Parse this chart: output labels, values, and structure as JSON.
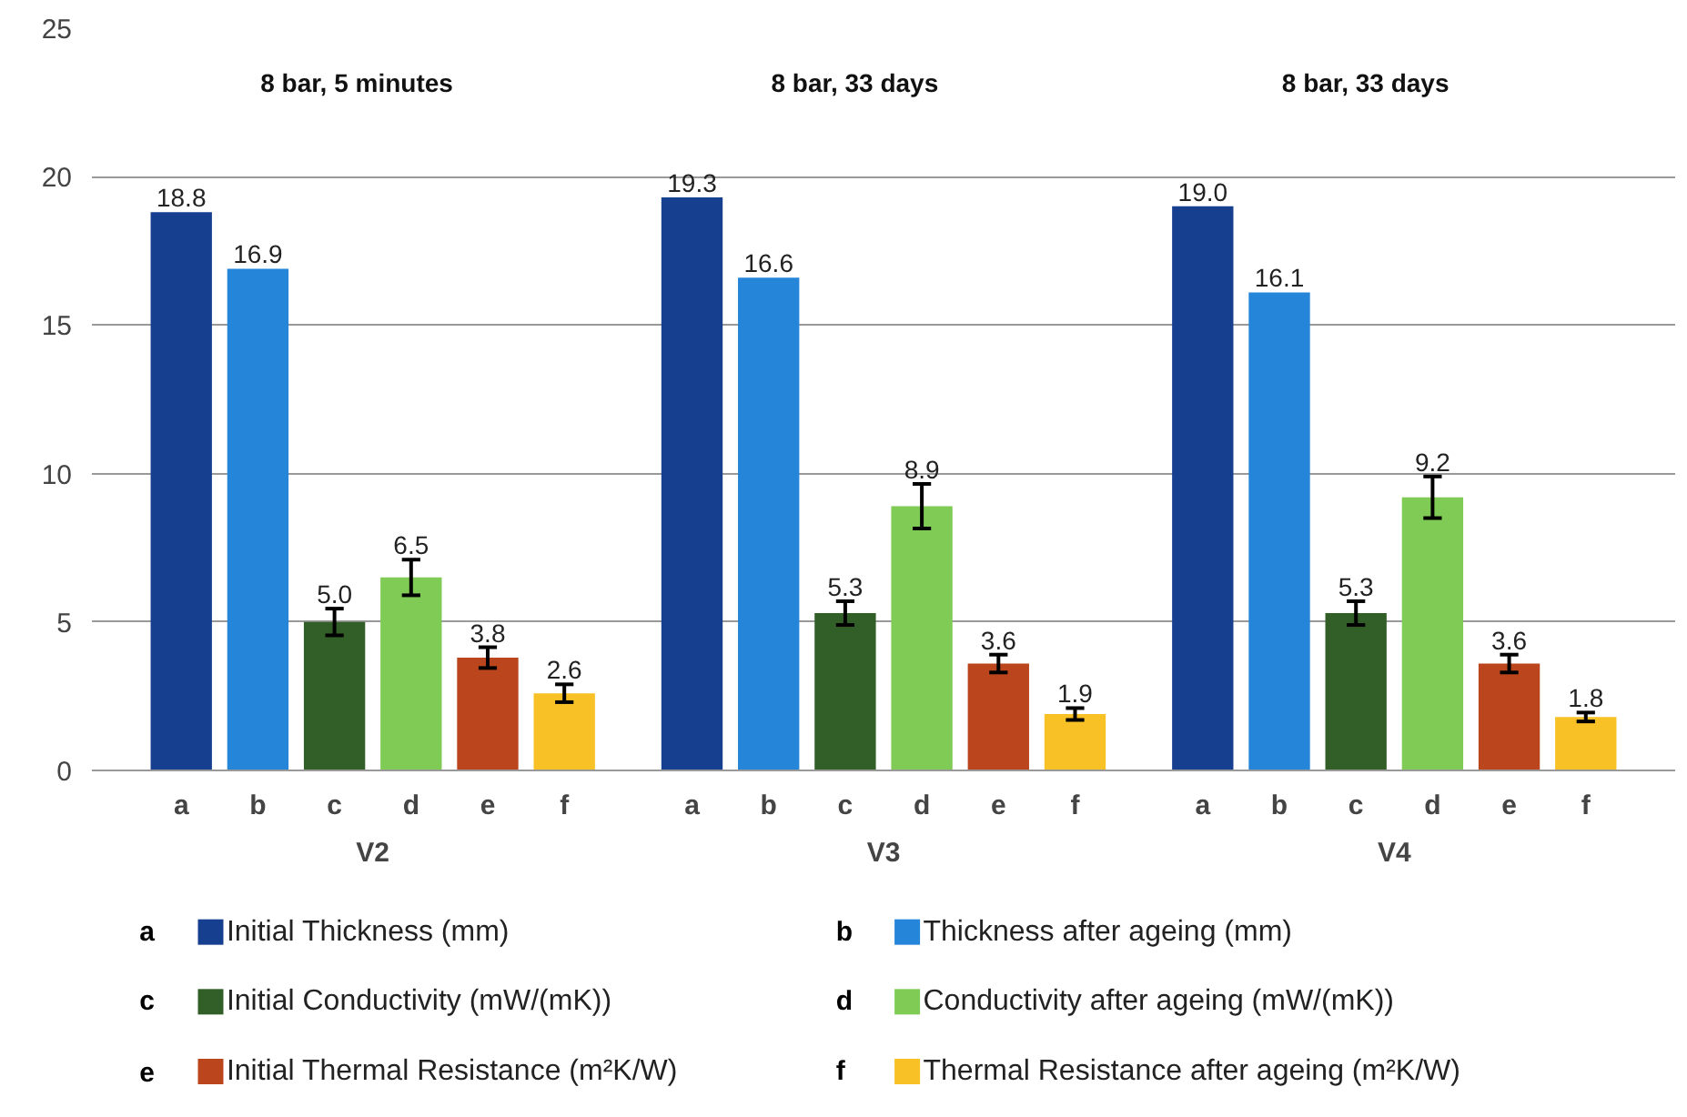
{
  "chart_data": {
    "type": "bar",
    "categories": [
      "V2",
      "V3",
      "V4"
    ],
    "series": [
      {
        "name": "Initial Thickness (mm)",
        "color": "#173f8f",
        "values": [
          18.8,
          19.3,
          19.0
        ],
        "value_labels": [
          "18.8",
          "19.3",
          "19.0"
        ]
      },
      {
        "name": "Thickness after ageing (mm)",
        "color": "#2585d8",
        "values": [
          16.9,
          16.6,
          16.1
        ],
        "value_labels": [
          "16.9",
          "16.6",
          "16.1"
        ]
      },
      {
        "name": "Initial Conductivity (mW/(mK))",
        "color": "#325e27",
        "values": [
          5.0,
          5.3,
          5.3
        ],
        "errors": [
          0.45,
          0.4,
          0.4
        ],
        "value_labels": [
          "5.0",
          "5.3",
          "5.3"
        ]
      },
      {
        "name": "Conductivity after ageing (mW/(mK))",
        "color": "#7fcb55",
        "values": [
          6.5,
          8.9,
          9.2
        ],
        "errors": [
          0.6,
          0.75,
          0.7
        ],
        "value_labels": [
          "6.5",
          "8.9",
          "9.2"
        ]
      },
      {
        "name": "Initial Thermal Resistance (m²K/W)",
        "color": "#bb461d",
        "values": [
          3.8,
          3.6,
          3.6
        ],
        "errors": [
          0.35,
          0.3,
          0.3
        ],
        "value_labels": [
          "3.8",
          "3.6",
          "3.6"
        ]
      },
      {
        "name": "Thermal Resistance after ageing (m²K/W)",
        "color": "#f8c126",
        "values": [
          2.6,
          1.9,
          1.8
        ],
        "errors": [
          0.3,
          0.2,
          0.15
        ],
        "value_labels": [
          "2.6",
          "1.9",
          "1.8"
        ]
      }
    ],
    "annotations": [
      "a",
      "b",
      "c",
      "d",
      "e",
      "f",
      "8 bar, 5 minutes",
      "8 bar, 33 days",
      "8 bar, 33 days"
    ],
    "ylim": [
      0,
      25
    ],
    "yticks": [
      0,
      5,
      10,
      15,
      20,
      25
    ],
    "grid": "y",
    "legend": "bottom"
  }
}
